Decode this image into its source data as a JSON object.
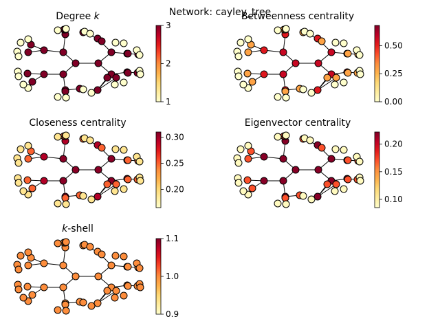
{
  "figure": {
    "suptitle": "Network: cayley_tree"
  },
  "colormap": {
    "name": "YlOrRd",
    "stops": [
      "#ffffcc",
      "#ffeda0",
      "#fed976",
      "#feb24c",
      "#fd8d3c",
      "#fc4e2a",
      "#e31a1c",
      "#bd0026",
      "#800026"
    ]
  },
  "network": {
    "type": "cayley tree",
    "node_count": 46,
    "edge_count": 45
  },
  "chart_data": [
    {
      "type": "network",
      "title_prefix": "Degree ",
      "title_var": "k",
      "title_suffix": "",
      "metric": "degree",
      "vmin": 1,
      "vmax": 3,
      "colorbar_ticks": [
        "1",
        "2",
        "3"
      ],
      "level_values": [
        3,
        3,
        3,
        1
      ]
    },
    {
      "type": "network",
      "title_prefix": "Betweenness centrality",
      "title_var": "",
      "title_suffix": "",
      "metric": "betweenness",
      "vmin": 0.0,
      "vmax": 0.68,
      "colorbar_ticks": [
        "0.00",
        "0.25",
        "0.50"
      ],
      "level_values": [
        0.57,
        0.52,
        0.29,
        0.0
      ]
    },
    {
      "type": "network",
      "title_prefix": "Closeness centrality",
      "title_var": "",
      "title_suffix": "",
      "metric": "closeness",
      "vmin": 0.165,
      "vmax": 0.31,
      "colorbar_ticks": [
        "0.20",
        "0.25",
        "0.30"
      ],
      "level_values": [
        0.307,
        0.295,
        0.25,
        0.19
      ]
    },
    {
      "type": "network",
      "title_prefix": "Eigenvector centrality",
      "title_var": "",
      "title_suffix": "",
      "metric": "eigenvector",
      "vmin": 0.085,
      "vmax": 0.222,
      "colorbar_ticks": [
        "0.10",
        "0.15",
        "0.20"
      ],
      "level_values": [
        0.22,
        0.22,
        0.17,
        0.09
      ]
    },
    {
      "type": "network",
      "title_prefix": "",
      "title_var": "k",
      "title_suffix": "-shell",
      "metric": "k-shell",
      "vmin": 0.9,
      "vmax": 1.1,
      "colorbar_ticks": [
        "0.9",
        "1.0",
        "1.1"
      ],
      "level_values": [
        1,
        1,
        1,
        1
      ]
    }
  ]
}
